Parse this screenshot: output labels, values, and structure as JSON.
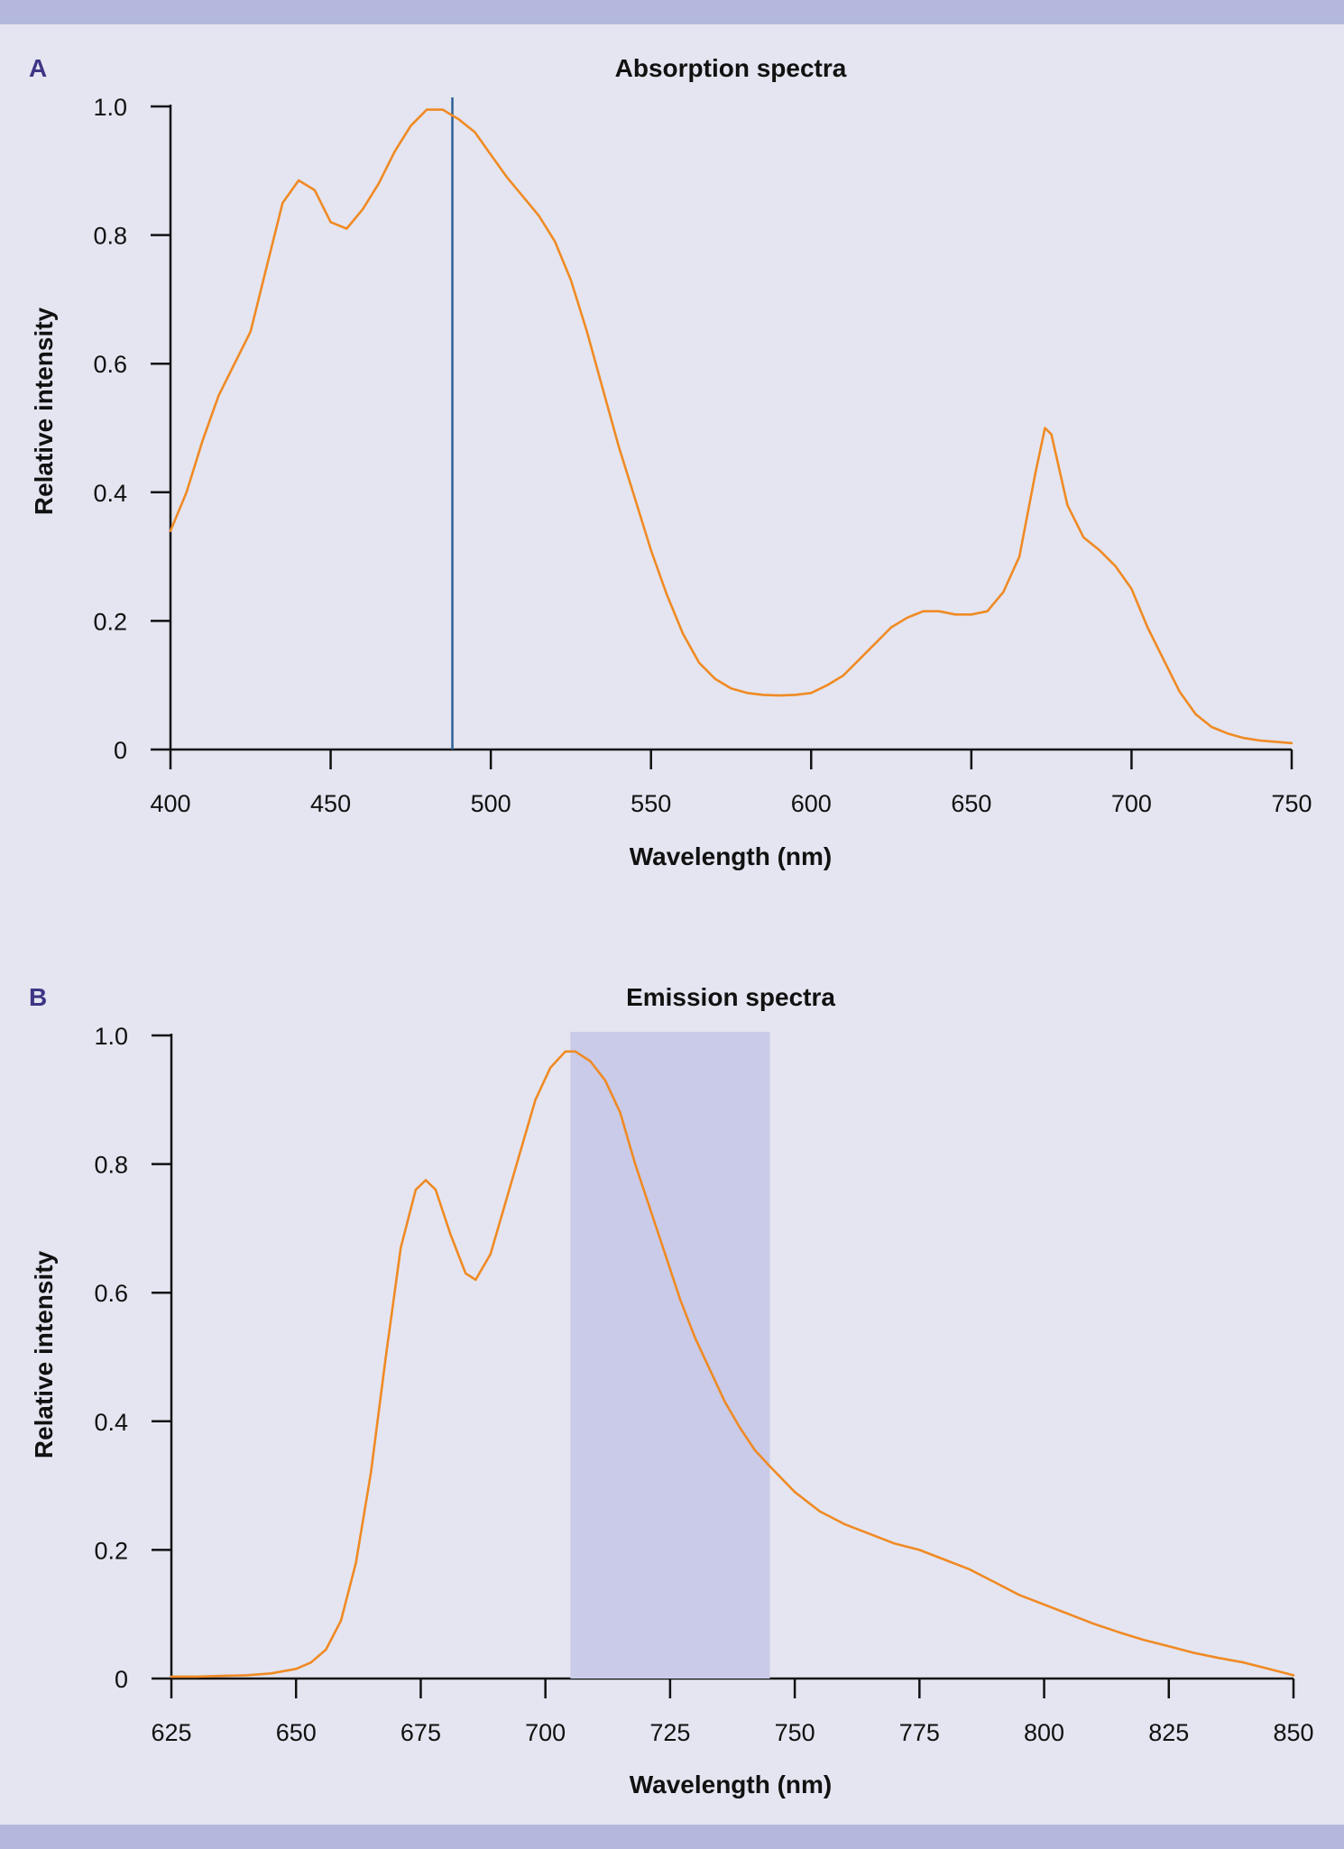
{
  "chart_data": [
    {
      "type": "line",
      "panel_label": "A",
      "title": "Absorption spectra",
      "xlabel": "Wavelength (nm)",
      "ylabel": "Relative intensity",
      "xlim": [
        400,
        750
      ],
      "ylim": [
        0,
        1.0
      ],
      "xticks": [
        400,
        450,
        500,
        550,
        600,
        650,
        700,
        750
      ],
      "xtick_labels": [
        "400",
        "450",
        "500",
        "550",
        "600",
        "650",
        "700",
        "750"
      ],
      "yticks": [
        0,
        0.2,
        0.4,
        0.6,
        0.8,
        1.0
      ],
      "ytick_labels": [
        "0",
        "0.2",
        "0.4",
        "0.6",
        "0.8",
        "1.0"
      ],
      "grid": false,
      "line_color": "#f08a24",
      "marker_line": {
        "x": 488,
        "color": "#2e5f96"
      },
      "series": [
        {
          "points": [
            [
              400,
              0.34
            ],
            [
              405,
              0.4
            ],
            [
              410,
              0.48
            ],
            [
              415,
              0.55
            ],
            [
              420,
              0.6
            ],
            [
              425,
              0.65
            ],
            [
              430,
              0.75
            ],
            [
              435,
              0.85
            ],
            [
              440,
              0.885
            ],
            [
              445,
              0.87
            ],
            [
              450,
              0.82
            ],
            [
              455,
              0.81
            ],
            [
              460,
              0.84
            ],
            [
              465,
              0.88
            ],
            [
              470,
              0.93
            ],
            [
              475,
              0.97
            ],
            [
              480,
              0.995
            ],
            [
              485,
              0.995
            ],
            [
              490,
              0.98
            ],
            [
              495,
              0.96
            ],
            [
              500,
              0.925
            ],
            [
              505,
              0.89
            ],
            [
              510,
              0.86
            ],
            [
              515,
              0.83
            ],
            [
              520,
              0.79
            ],
            [
              525,
              0.73
            ],
            [
              530,
              0.65
            ],
            [
              535,
              0.56
            ],
            [
              540,
              0.47
            ],
            [
              545,
              0.39
            ],
            [
              550,
              0.31
            ],
            [
              555,
              0.24
            ],
            [
              560,
              0.18
            ],
            [
              565,
              0.135
            ],
            [
              570,
              0.11
            ],
            [
              575,
              0.095
            ],
            [
              580,
              0.088
            ],
            [
              585,
              0.085
            ],
            [
              590,
              0.084
            ],
            [
              595,
              0.085
            ],
            [
              600,
              0.088
            ],
            [
              605,
              0.1
            ],
            [
              610,
              0.115
            ],
            [
              615,
              0.14
            ],
            [
              620,
              0.165
            ],
            [
              625,
              0.19
            ],
            [
              630,
              0.205
            ],
            [
              635,
              0.215
            ],
            [
              640,
              0.215
            ],
            [
              645,
              0.21
            ],
            [
              650,
              0.21
            ],
            [
              655,
              0.215
            ],
            [
              660,
              0.245
            ],
            [
              665,
              0.3
            ],
            [
              670,
              0.43
            ],
            [
              673,
              0.5
            ],
            [
              675,
              0.49
            ],
            [
              680,
              0.38
            ],
            [
              685,
              0.33
            ],
            [
              690,
              0.31
            ],
            [
              695,
              0.285
            ],
            [
              700,
              0.25
            ],
            [
              705,
              0.19
            ],
            [
              710,
              0.14
            ],
            [
              715,
              0.09
            ],
            [
              720,
              0.055
            ],
            [
              725,
              0.035
            ],
            [
              730,
              0.025
            ],
            [
              735,
              0.018
            ],
            [
              740,
              0.014
            ],
            [
              745,
              0.012
            ],
            [
              750,
              0.01
            ]
          ]
        }
      ]
    },
    {
      "type": "line",
      "panel_label": "B",
      "title": "Emission spectra",
      "xlabel": "Wavelength (nm)",
      "ylabel": "Relative intensity",
      "xlim": [
        625,
        850
      ],
      "ylim": [
        0,
        1.0
      ],
      "xticks": [
        625,
        650,
        675,
        700,
        725,
        750,
        775,
        800,
        825,
        850
      ],
      "xtick_labels": [
        "625",
        "650",
        "675",
        "700",
        "725",
        "750",
        "775",
        "800",
        "825",
        "850"
      ],
      "yticks": [
        0,
        0.2,
        0.4,
        0.6,
        0.8,
        1.0
      ],
      "ytick_labels": [
        "0",
        "0.2",
        "0.4",
        "0.6",
        "0.8",
        "1.0"
      ],
      "grid": false,
      "line_color": "#f08a24",
      "shaded_band": {
        "x_start": 705,
        "x_end": 745,
        "color": "#c9cbe8"
      },
      "series": [
        {
          "points": [
            [
              625,
              0.003
            ],
            [
              630,
              0.003
            ],
            [
              635,
              0.004
            ],
            [
              640,
              0.005
            ],
            [
              645,
              0.008
            ],
            [
              650,
              0.015
            ],
            [
              653,
              0.025
            ],
            [
              656,
              0.045
            ],
            [
              659,
              0.09
            ],
            [
              662,
              0.18
            ],
            [
              665,
              0.32
            ],
            [
              668,
              0.5
            ],
            [
              671,
              0.67
            ],
            [
              674,
              0.76
            ],
            [
              676,
              0.775
            ],
            [
              678,
              0.76
            ],
            [
              681,
              0.69
            ],
            [
              684,
              0.63
            ],
            [
              686,
              0.62
            ],
            [
              689,
              0.66
            ],
            [
              692,
              0.74
            ],
            [
              695,
              0.82
            ],
            [
              698,
              0.9
            ],
            [
              701,
              0.95
            ],
            [
              704,
              0.975
            ],
            [
              706,
              0.975
            ],
            [
              709,
              0.96
            ],
            [
              712,
              0.93
            ],
            [
              715,
              0.88
            ],
            [
              718,
              0.8
            ],
            [
              721,
              0.73
            ],
            [
              724,
              0.66
            ],
            [
              727,
              0.59
            ],
            [
              730,
              0.53
            ],
            [
              733,
              0.48
            ],
            [
              736,
              0.43
            ],
            [
              739,
              0.39
            ],
            [
              742,
              0.355
            ],
            [
              745,
              0.33
            ],
            [
              750,
              0.29
            ],
            [
              755,
              0.26
            ],
            [
              760,
              0.24
            ],
            [
              765,
              0.225
            ],
            [
              770,
              0.21
            ],
            [
              775,
              0.2
            ],
            [
              780,
              0.185
            ],
            [
              785,
              0.17
            ],
            [
              790,
              0.15
            ],
            [
              795,
              0.13
            ],
            [
              800,
              0.115
            ],
            [
              805,
              0.1
            ],
            [
              810,
              0.085
            ],
            [
              815,
              0.072
            ],
            [
              820,
              0.06
            ],
            [
              825,
              0.05
            ],
            [
              830,
              0.04
            ],
            [
              835,
              0.032
            ],
            [
              840,
              0.025
            ],
            [
              845,
              0.015
            ],
            [
              850,
              0.005
            ]
          ]
        }
      ]
    }
  ]
}
